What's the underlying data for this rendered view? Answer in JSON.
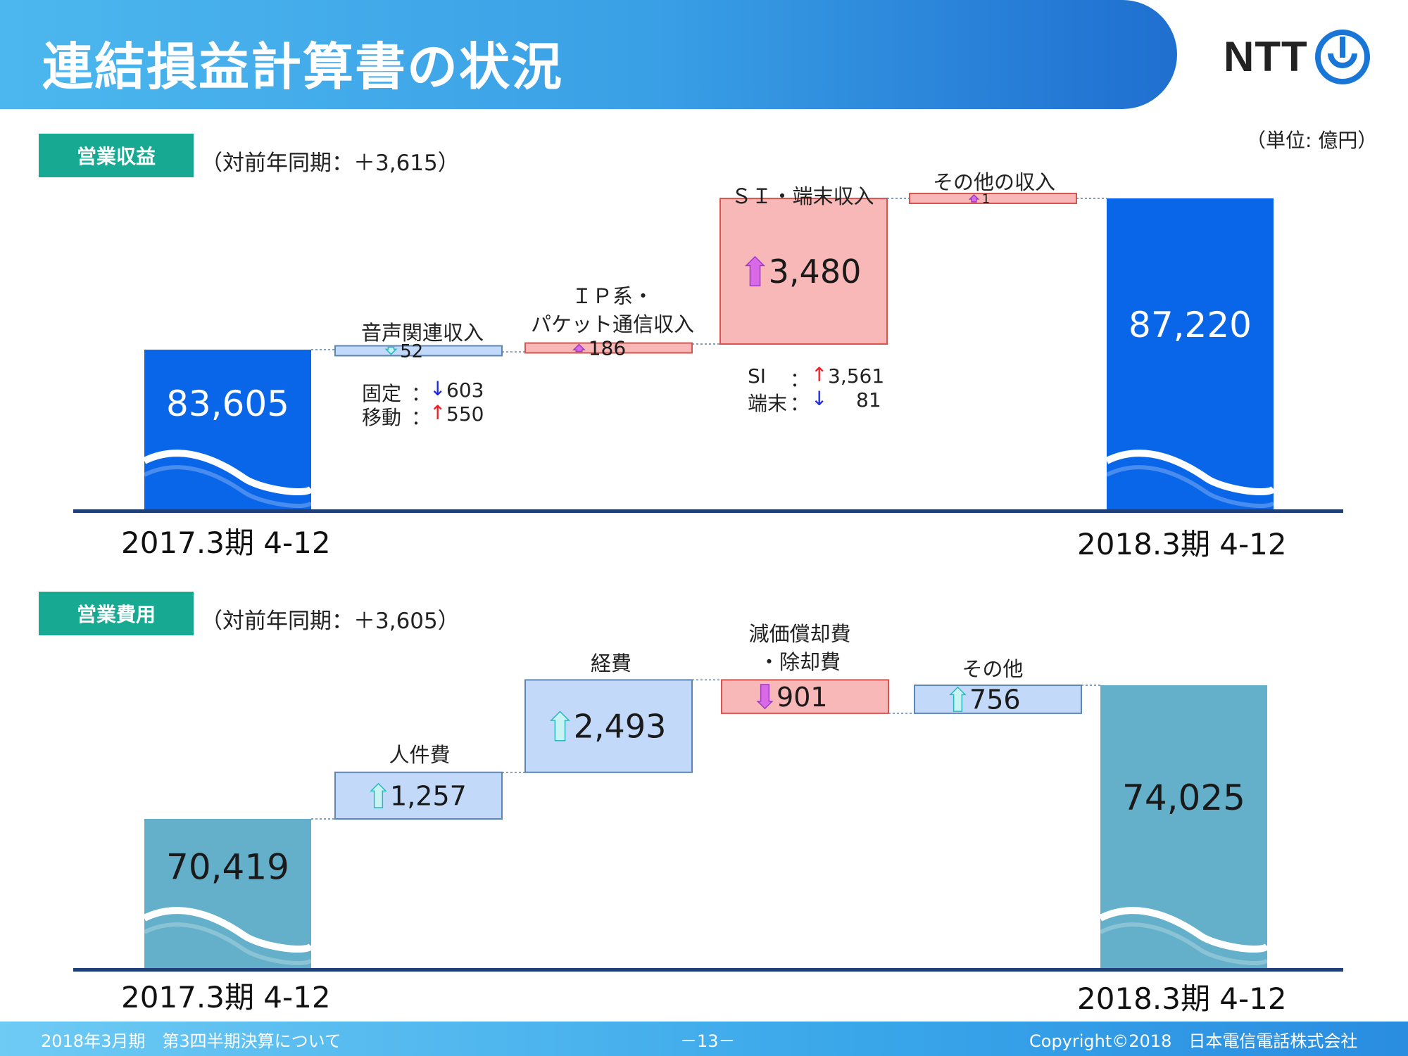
{
  "header": {
    "title": "連結損益計算書の状況",
    "logo_text": "NTT",
    "unit": "（単位: 億円）"
  },
  "revenue": {
    "tag": "営業収益",
    "delta": "（対前年同期：＋3,615）",
    "period_start": "2017.3期 4-12",
    "period_end": "2018.3期 4-12",
    "voice_label": "音声関連収入",
    "ip_label_1": "ＩＰ系・",
    "ip_label_2": "パケット通信収入",
    "si_label": "ＳＩ・端末収入",
    "other_label": "その他の収入",
    "voice_sub": [
      {
        "name": "固定",
        "sep": "：",
        "arrow": "↓",
        "value": "603"
      },
      {
        "name": "移動",
        "sep": "：",
        "arrow": "↑",
        "value": "550"
      }
    ],
    "si_sub": [
      {
        "name": "SI",
        "sep": "：",
        "arrow": "↑",
        "value": "3,561"
      },
      {
        "name": "端末",
        "sep": "：",
        "arrow": "↓",
        "value": "81"
      }
    ]
  },
  "expense": {
    "tag": "営業費用",
    "delta": "（対前年同期：＋3,605）",
    "period_start": "2017.3期 4-12",
    "period_end": "2018.3期 4-12",
    "personnel_label": "人件費",
    "expenses_label": "経費",
    "depr_label_1": "減価償却費",
    "depr_label_2": "・除却費",
    "other_label": "その他"
  },
  "chart_data": [
    {
      "type": "bar",
      "title": "営業収益",
      "categories": [
        "2017.3期 4-12",
        "音声関連収入",
        "ＩＰ系・パケット通信収入",
        "ＳＩ・端末収入",
        "その他の収入",
        "2018.3期 4-12"
      ],
      "values": [
        83605,
        -52,
        186,
        3480,
        1,
        87220
      ],
      "labels": [
        "83,605",
        "52",
        "186",
        "3,480",
        "1",
        "87,220"
      ],
      "kinds": [
        "total",
        "delta",
        "delta",
        "delta",
        "delta",
        "total"
      ],
      "colors": {
        "total": "#0a66e8",
        "increase": "#f8b8b8",
        "decrease": "#c2d9fa"
      }
    },
    {
      "type": "bar",
      "title": "営業費用",
      "categories": [
        "2017.3期 4-12",
        "人件費",
        "経費",
        "減価償却費・除却費",
        "その他",
        "2018.3期 4-12"
      ],
      "values": [
        70419,
        1257,
        2493,
        -901,
        756,
        74025
      ],
      "labels": [
        "70,419",
        "1,257",
        "2,493",
        "901",
        "756",
        "74,025"
      ],
      "kinds": [
        "total",
        "delta",
        "delta",
        "delta",
        "delta",
        "total"
      ],
      "colors": {
        "total": "#64afc9",
        "increase": "#c2d9fa",
        "decrease": "#f8b8b8"
      }
    }
  ],
  "footer": {
    "left": "2018年3月期　第3四半期決算について",
    "center": "－13－",
    "right": "Copyright©2018　日本電信電話株式会社"
  }
}
